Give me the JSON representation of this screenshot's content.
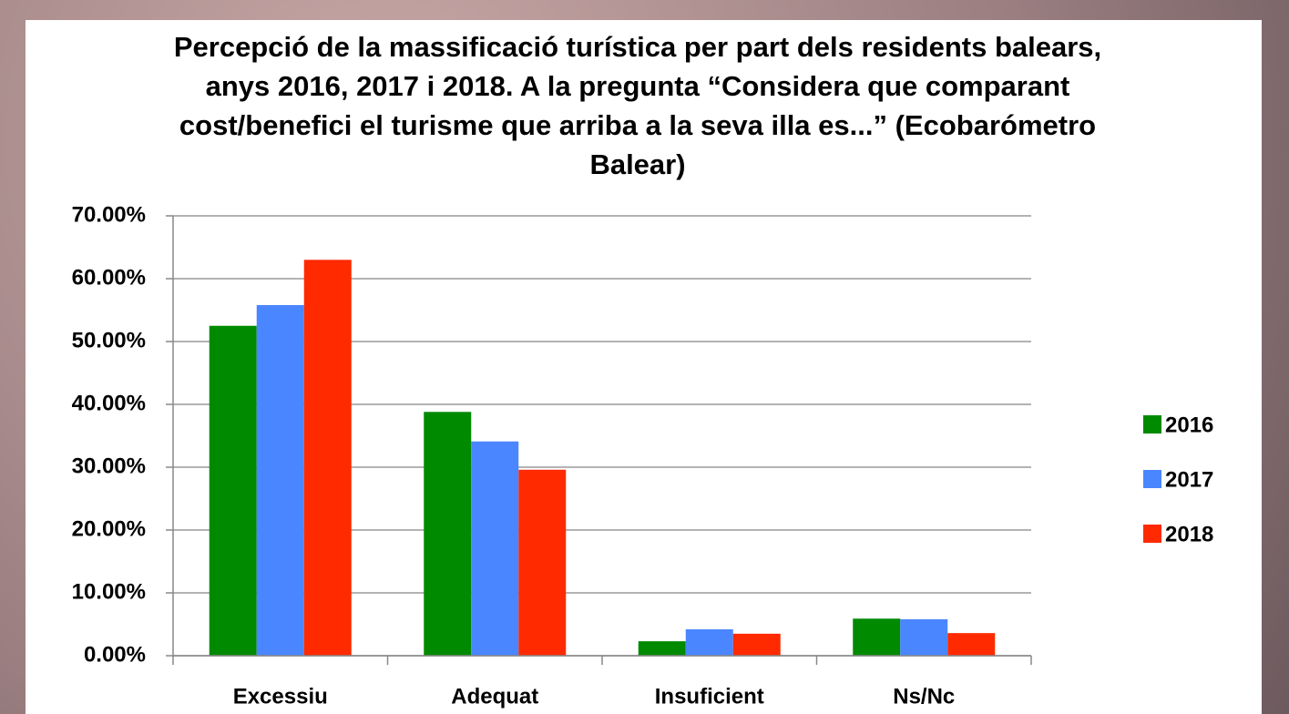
{
  "chart_data": {
    "type": "bar",
    "title": "Percepció de la massificació turística per part dels residents balears, anys 2016, 2017 i 2018. A la pregunta “Considera que comparant cost/benefici el turisme que arriba a la seva illa es...” (Ecobarómetro Balear)",
    "categories": [
      "Excessiu",
      "Adequat",
      "Insuficient",
      "Ns/Nc"
    ],
    "series": [
      {
        "name": "2016",
        "color": "#008a00",
        "values": [
          52.5,
          38.8,
          2.3,
          5.9
        ]
      },
      {
        "name": "2017",
        "color": "#4a86ff",
        "values": [
          55.8,
          34.1,
          4.2,
          5.8
        ]
      },
      {
        "name": "2018",
        "color": "#ff2a00",
        "values": [
          63.0,
          29.6,
          3.5,
          3.6
        ]
      }
    ],
    "ylim": [
      0,
      70
    ],
    "yticks": [
      {
        "value": 0,
        "label": "0.00%"
      },
      {
        "value": 10,
        "label": "10.00%"
      },
      {
        "value": 20,
        "label": "20.00%"
      },
      {
        "value": 30,
        "label": "30.00%"
      },
      {
        "value": 40,
        "label": "40.00%"
      },
      {
        "value": 50,
        "label": "50.00%"
      },
      {
        "value": 60,
        "label": "60.00%"
      },
      {
        "value": 70,
        "label": "70.00%"
      }
    ],
    "grid": true,
    "legend": "right"
  }
}
